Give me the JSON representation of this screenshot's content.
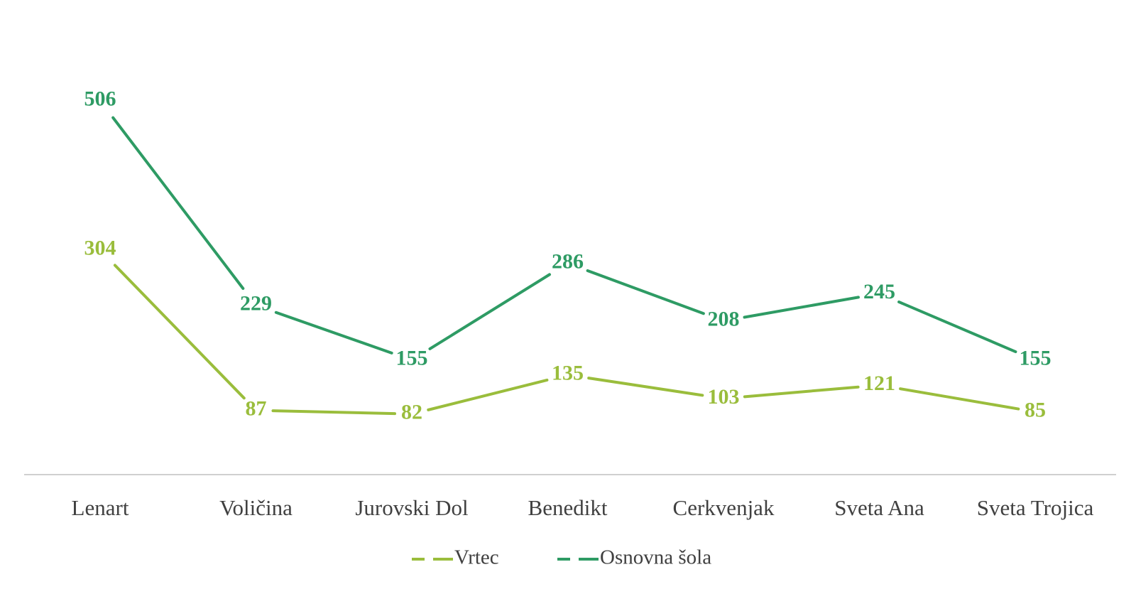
{
  "chart_data": {
    "type": "line",
    "title": "",
    "xlabel": "",
    "ylabel": "",
    "categories": [
      "Lenart",
      "Voličina",
      "Jurovski Dol",
      "Benedikt",
      "Cerkvenjak",
      "Sveta Ana",
      "Sveta Trojica"
    ],
    "ylim": [
      0,
      560
    ],
    "grid": false,
    "legend_position": "bottom",
    "data_labels": true,
    "series": [
      {
        "name": "Vrtec",
        "color": "#9ABD3C",
        "values": [
          304,
          87,
          82,
          135,
          103,
          121,
          85
        ],
        "labels": [
          "304",
          "87",
          "82",
          "135",
          "103",
          "121",
          "85"
        ]
      },
      {
        "name": "Osnovna šola",
        "color": "#2E9B64",
        "values": [
          506,
          229,
          155,
          286,
          208,
          245,
          155
        ],
        "labels": [
          "506",
          "229",
          "155",
          "286",
          "208",
          "245",
          "155"
        ]
      }
    ]
  }
}
